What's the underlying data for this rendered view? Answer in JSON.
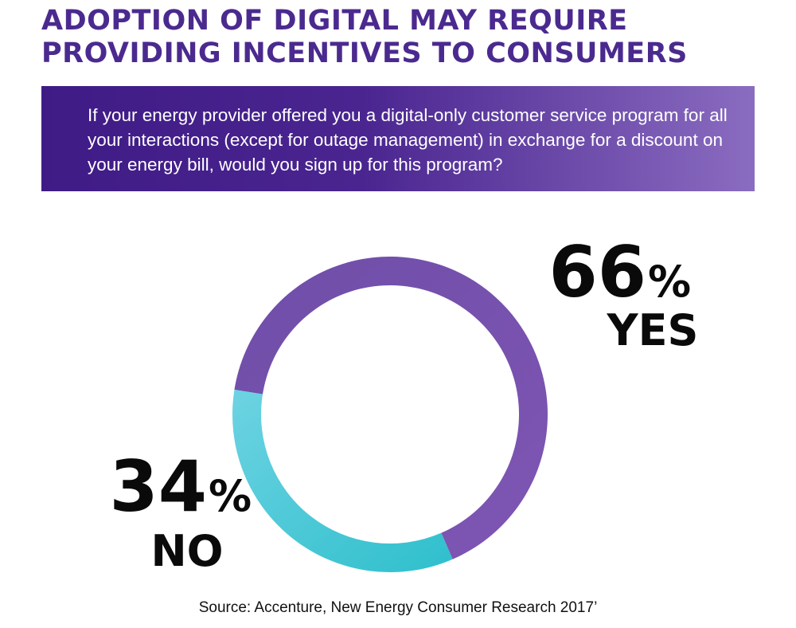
{
  "headline": {
    "line1": "ADOPTION OF DIGITAL MAY REQUIRE",
    "line2": "PROVIDING INCENTIVES TO CONSUMERS"
  },
  "question": "If your energy provider offered you a digital-only customer service program for all your interactions (except for outage management) in exchange for a discount on your energy bill, would you sign up for this program?",
  "colors": {
    "headline": "#4b2a8f",
    "yes": "#7b55b0",
    "no": "#5ccfdc"
  },
  "chart_data": {
    "type": "pie",
    "donut": true,
    "slices": [
      {
        "label": "YES",
        "value": 66,
        "value_text": "66",
        "unit": "%",
        "color": "#7b55b0"
      },
      {
        "label": "NO",
        "value": 34,
        "value_text": "34",
        "unit": "%",
        "color": "#5ccfdc"
      }
    ]
  },
  "source": "Source: Accenture, New Energy Consumer Research 2017’"
}
